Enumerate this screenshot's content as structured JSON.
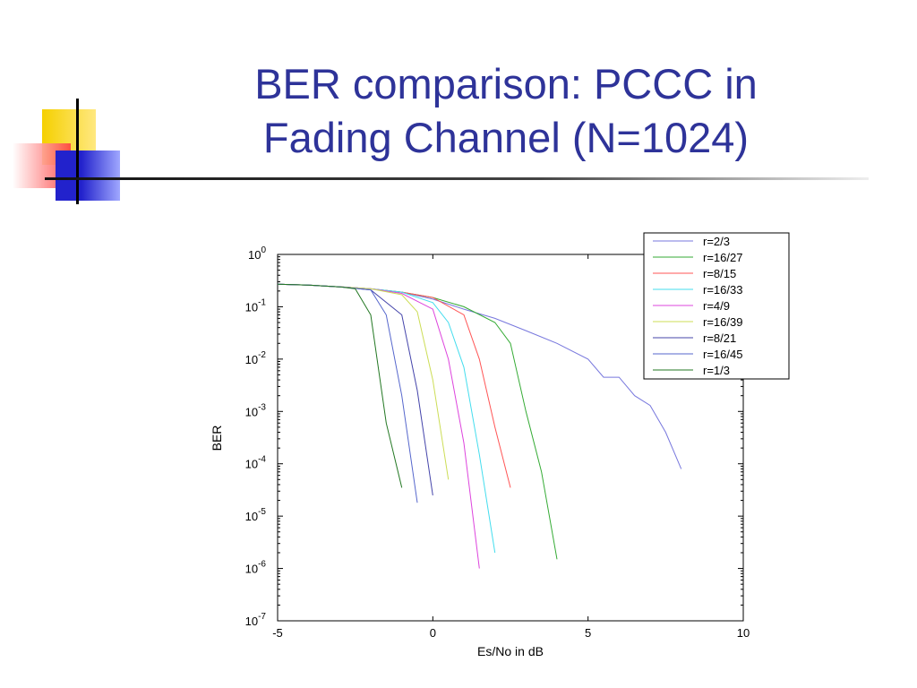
{
  "slide": {
    "title_line1": "BER comparison: PCCC in",
    "title_line2": "Fading Channel (N=1024)"
  },
  "chart_data": {
    "type": "line",
    "title": "",
    "xlabel": "Es/No in dB",
    "ylabel": "BER",
    "xlim": [
      -5,
      10
    ],
    "ylim_log10": [
      -7,
      0
    ],
    "y_scale": "log",
    "x_ticks": [
      "-5",
      "0",
      "5",
      "10"
    ],
    "y_ticks": [
      "10^0",
      "10^-1",
      "10^-2",
      "10^-3",
      "10^-4",
      "10^-5",
      "10^-6",
      "10^-7"
    ],
    "legend_position": "top-right",
    "grid": false,
    "series": [
      {
        "name": "r=2/3",
        "color": "#7777dd",
        "x": [
          -5,
          -4,
          -3,
          -2,
          -1,
          0,
          1,
          2,
          3,
          4,
          5,
          5.5,
          6,
          6.5,
          7,
          7.5,
          8
        ],
        "y": [
          0.27,
          0.26,
          0.24,
          0.22,
          0.19,
          0.14,
          0.09,
          0.06,
          0.035,
          0.02,
          0.01,
          0.0045,
          0.0045,
          0.002,
          0.0013,
          0.0004,
          8e-05
        ]
      },
      {
        "name": "r=16/27",
        "color": "#33aa33",
        "x": [
          -5,
          -4,
          -3,
          -2,
          -1,
          0,
          1,
          2,
          2.5,
          3,
          3.5,
          4
        ],
        "y": [
          0.27,
          0.26,
          0.24,
          0.22,
          0.19,
          0.15,
          0.1,
          0.05,
          0.02,
          0.001,
          7e-05,
          1.5e-06
        ]
      },
      {
        "name": "r=8/15",
        "color": "#ff5555",
        "x": [
          -5,
          -4,
          -3,
          -2,
          -1,
          0,
          1,
          1.5,
          2,
          2.5
        ],
        "y": [
          0.27,
          0.26,
          0.24,
          0.22,
          0.19,
          0.15,
          0.07,
          0.01,
          0.0005,
          3.5e-05
        ]
      },
      {
        "name": "r=16/33",
        "color": "#44ddee",
        "x": [
          -5,
          -4,
          -3,
          -2,
          -1,
          0,
          0.5,
          1,
          1.5,
          2
        ],
        "y": [
          0.27,
          0.26,
          0.24,
          0.22,
          0.19,
          0.12,
          0.05,
          0.007,
          0.00015,
          2e-06
        ]
      },
      {
        "name": "r=4/9",
        "color": "#dd44dd",
        "x": [
          -5,
          -4,
          -3,
          -2,
          -1,
          0,
          0.5,
          1,
          1.5
        ],
        "y": [
          0.27,
          0.26,
          0.24,
          0.22,
          0.18,
          0.09,
          0.01,
          0.00025,
          1e-06
        ]
      },
      {
        "name": "r=16/39",
        "color": "#ccdd55",
        "x": [
          -5,
          -4,
          -3,
          -2,
          -1,
          -0.5,
          0,
          0.5
        ],
        "y": [
          0.27,
          0.26,
          0.24,
          0.22,
          0.17,
          0.08,
          0.004,
          5e-05
        ]
      },
      {
        "name": "r=8/21",
        "color": "#4444aa",
        "x": [
          -5,
          -4,
          -3,
          -2,
          -1,
          -0.5,
          0
        ],
        "y": [
          0.27,
          0.26,
          0.24,
          0.21,
          0.07,
          0.0025,
          2.5e-05
        ]
      },
      {
        "name": "r=16/45",
        "color": "#5566cc",
        "x": [
          -5,
          -4,
          -3,
          -2,
          -1.5,
          -1,
          -0.5
        ],
        "y": [
          0.27,
          0.26,
          0.24,
          0.21,
          0.07,
          0.002,
          1.8e-05
        ]
      },
      {
        "name": "r=1/3",
        "color": "#227722",
        "x": [
          -5,
          -4,
          -3,
          -2.5,
          -2,
          -1.5,
          -1
        ],
        "y": [
          0.27,
          0.26,
          0.24,
          0.22,
          0.07,
          0.0006,
          3.5e-05
        ]
      }
    ]
  }
}
